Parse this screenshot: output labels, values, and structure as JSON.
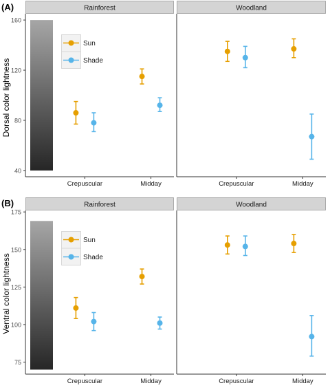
{
  "colors": {
    "sun": "#E69F00",
    "shade": "#56B4E9",
    "strip_fill": "#D4D4D4",
    "strip_border": "#7F7F7F",
    "axis": "#333333",
    "text": "#1a1a1a",
    "gradient_top": "#A6A6A6",
    "gradient_bottom": "#262626"
  },
  "chart_data": [
    {
      "type": "scatter",
      "panel_label": "(A)",
      "ylabel": "Dorsal color lightness",
      "xlabel": "",
      "facets": [
        "Rainforest",
        "Woodland"
      ],
      "categories": [
        "Crepuscular",
        "Midday"
      ],
      "ylim": [
        35,
        165
      ],
      "yticks": [
        40,
        80,
        120,
        160
      ],
      "gradient_range": [
        40,
        160
      ],
      "legend": {
        "placement": "top-left",
        "entries": [
          "Sun",
          "Shade"
        ]
      },
      "grid": false,
      "series": [
        {
          "name": "Sun",
          "color_key": "sun",
          "points": [
            {
              "facet": "Rainforest",
              "category": "Crepuscular",
              "y": 86,
              "lo": 77,
              "hi": 95
            },
            {
              "facet": "Rainforest",
              "category": "Midday",
              "y": 115,
              "lo": 109,
              "hi": 121
            },
            {
              "facet": "Woodland",
              "category": "Crepuscular",
              "y": 135,
              "lo": 127,
              "hi": 143
            },
            {
              "facet": "Woodland",
              "category": "Midday",
              "y": 137,
              "lo": 130,
              "hi": 145
            }
          ]
        },
        {
          "name": "Shade",
          "color_key": "shade",
          "points": [
            {
              "facet": "Rainforest",
              "category": "Crepuscular",
              "y": 78,
              "lo": 71,
              "hi": 86
            },
            {
              "facet": "Rainforest",
              "category": "Midday",
              "y": 92,
              "lo": 87,
              "hi": 98
            },
            {
              "facet": "Woodland",
              "category": "Crepuscular",
              "y": 130,
              "lo": 122,
              "hi": 139
            },
            {
              "facet": "Woodland",
              "category": "Midday",
              "y": 67,
              "lo": 49,
              "hi": 85
            }
          ]
        }
      ]
    },
    {
      "type": "scatter",
      "panel_label": "(B)",
      "ylabel": "Ventral color lightness",
      "xlabel": "",
      "facets": [
        "Rainforest",
        "Woodland"
      ],
      "categories": [
        "Crepuscular",
        "Midday"
      ],
      "ylim": [
        67,
        176
      ],
      "yticks": [
        75,
        100,
        125,
        150,
        175
      ],
      "gradient_range": [
        70,
        169
      ],
      "legend": {
        "placement": "top-left",
        "entries": [
          "Sun",
          "Shade"
        ]
      },
      "grid": false,
      "series": [
        {
          "name": "Sun",
          "color_key": "sun",
          "points": [
            {
              "facet": "Rainforest",
              "category": "Crepuscular",
              "y": 111,
              "lo": 104,
              "hi": 118
            },
            {
              "facet": "Rainforest",
              "category": "Midday",
              "y": 132,
              "lo": 127,
              "hi": 137
            },
            {
              "facet": "Woodland",
              "category": "Crepuscular",
              "y": 153,
              "lo": 147,
              "hi": 159
            },
            {
              "facet": "Woodland",
              "category": "Midday",
              "y": 154,
              "lo": 148,
              "hi": 160
            }
          ]
        },
        {
          "name": "Shade",
          "color_key": "shade",
          "points": [
            {
              "facet": "Rainforest",
              "category": "Crepuscular",
              "y": 102,
              "lo": 96,
              "hi": 108
            },
            {
              "facet": "Rainforest",
              "category": "Midday",
              "y": 101,
              "lo": 97,
              "hi": 105
            },
            {
              "facet": "Woodland",
              "category": "Crepuscular",
              "y": 152,
              "lo": 146,
              "hi": 159
            },
            {
              "facet": "Woodland",
              "category": "Midday",
              "y": 92,
              "lo": 79,
              "hi": 106
            }
          ]
        }
      ]
    }
  ]
}
